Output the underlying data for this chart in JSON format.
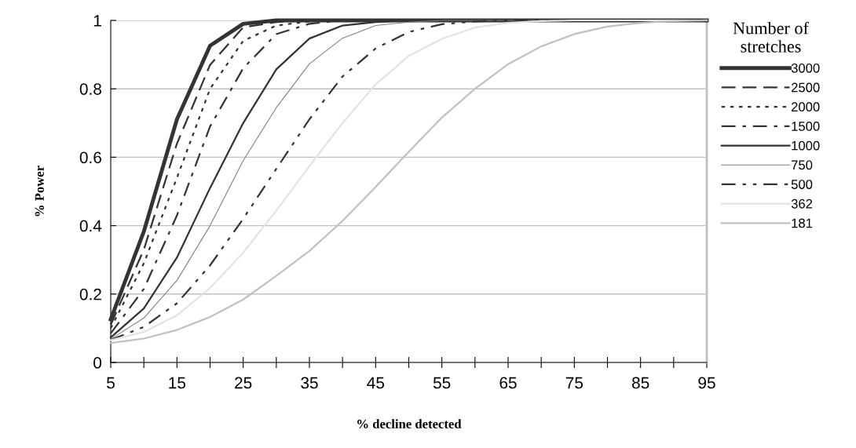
{
  "chart_data": {
    "type": "line",
    "xlabel": "% decline detected",
    "ylabel": "% Power",
    "legend_title": "Number of\nstretches",
    "x": [
      5,
      10,
      15,
      20,
      25,
      30,
      35,
      40,
      45,
      50,
      55,
      60,
      65,
      70,
      75,
      80,
      85,
      90,
      95
    ],
    "xlim": [
      5,
      95
    ],
    "xticks": [
      5,
      {
        "value": 10,
        "label": null
      },
      15,
      {
        "value": 20,
        "label": null
      },
      25,
      {
        "value": 30,
        "label": null
      },
      35,
      {
        "value": 40,
        "label": null
      },
      45,
      {
        "value": 50,
        "label": null
      },
      55,
      {
        "value": 60,
        "label": null
      },
      65,
      {
        "value": 70,
        "label": null
      },
      75,
      {
        "value": 80,
        "label": null
      },
      85,
      {
        "value": 90,
        "label": null
      },
      95
    ],
    "ylim": [
      0,
      1
    ],
    "yticks": [
      0,
      0.2,
      0.4,
      0.6,
      0.8,
      1
    ],
    "grid": "y",
    "legend": "right",
    "marker": "none",
    "series": [
      {
        "name": "3000",
        "color": "#333333",
        "line_style": "solid",
        "values": [
          0.126,
          0.383,
          0.711,
          0.926,
          0.99,
          1,
          1,
          1,
          1,
          1,
          1,
          1,
          1,
          1,
          1,
          1,
          1,
          1,
          1
        ]
      },
      {
        "name": "2500",
        "color": "#333333",
        "line_style": "dashed",
        "values": [
          0.11,
          0.33,
          0.64,
          0.87,
          0.98,
          0.995,
          1,
          1,
          1,
          1,
          1,
          1,
          1,
          1,
          1,
          1,
          1,
          1,
          1
        ]
      },
      {
        "name": "2000",
        "color": "#333333",
        "line_style": "dotted",
        "values": [
          0.1,
          0.29,
          0.54,
          0.8,
          0.94,
          0.985,
          0.997,
          1,
          1,
          1,
          1,
          1,
          1,
          1,
          1,
          1,
          1,
          1,
          1
        ]
      },
      {
        "name": "1500",
        "color": "#333333",
        "line_style": "dashdot",
        "values": [
          0.085,
          0.215,
          0.43,
          0.69,
          0.86,
          0.96,
          0.99,
          1,
          1,
          1,
          1,
          1,
          1,
          1,
          1,
          1,
          1,
          1,
          1
        ]
      },
      {
        "name": "1000",
        "color": "#333333",
        "line_style": "solid",
        "values": [
          0.073,
          0.158,
          0.307,
          0.51,
          0.7,
          0.857,
          0.947,
          0.985,
          0.995,
          1,
          1,
          1,
          1,
          1,
          1,
          1,
          1,
          1,
          1
        ]
      },
      {
        "name": "750",
        "color": "#808080",
        "line_style": "solid",
        "values": [
          0.068,
          0.13,
          0.24,
          0.4,
          0.59,
          0.745,
          0.873,
          0.948,
          0.985,
          0.995,
          1,
          1,
          1,
          1,
          1,
          1,
          1,
          1,
          1
        ]
      },
      {
        "name": "500",
        "color": "#333333",
        "line_style": "dashdotdot",
        "values": [
          0.066,
          0.104,
          0.173,
          0.284,
          0.42,
          0.566,
          0.711,
          0.836,
          0.918,
          0.966,
          0.989,
          0.997,
          1,
          1,
          1,
          1,
          1,
          1,
          1
        ]
      },
      {
        "name": "362",
        "color": "#e3e3e3",
        "line_style": "solid",
        "values": [
          0.065,
          0.089,
          0.138,
          0.218,
          0.321,
          0.444,
          0.574,
          0.7,
          0.813,
          0.896,
          0.946,
          0.979,
          0.993,
          0.998,
          1,
          1,
          1,
          1,
          1
        ]
      },
      {
        "name": "181",
        "color": "#c0c0c0",
        "line_style": "solid",
        "values": [
          0.057,
          0.07,
          0.095,
          0.133,
          0.184,
          0.253,
          0.326,
          0.414,
          0.513,
          0.616,
          0.716,
          0.8,
          0.872,
          0.924,
          0.96,
          0.982,
          0.993,
          0.998,
          1
        ]
      }
    ]
  }
}
